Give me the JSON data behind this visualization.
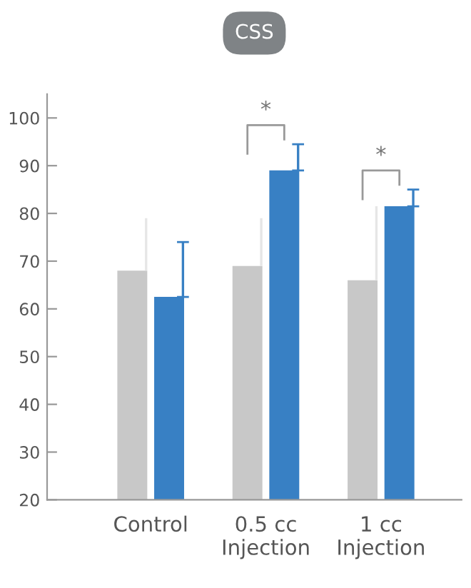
{
  "chart_data": {
    "type": "bar",
    "title": "CSS",
    "categories": [
      "Control",
      "0.5 cc\nInjection",
      "1 cc\nInjection"
    ],
    "series": [
      {
        "color": "#c8c8c8",
        "values": [
          68,
          69,
          66
        ],
        "errors": [
          [
            68,
            79
          ],
          [
            69,
            79
          ],
          [
            66,
            81.5
          ]
        ]
      },
      {
        "color": "#3880c4",
        "values": [
          62.5,
          89,
          81.5
        ],
        "errors": [
          [
            62.5,
            74
          ],
          [
            89,
            94.5
          ],
          [
            81.5,
            85
          ]
        ]
      }
    ],
    "ylim": [
      20,
      105
    ],
    "yticks": [
      20,
      30,
      40,
      50,
      60,
      70,
      80,
      90,
      100
    ],
    "grid": false,
    "legend": false,
    "annotations": [
      "*",
      "*"
    ]
  }
}
